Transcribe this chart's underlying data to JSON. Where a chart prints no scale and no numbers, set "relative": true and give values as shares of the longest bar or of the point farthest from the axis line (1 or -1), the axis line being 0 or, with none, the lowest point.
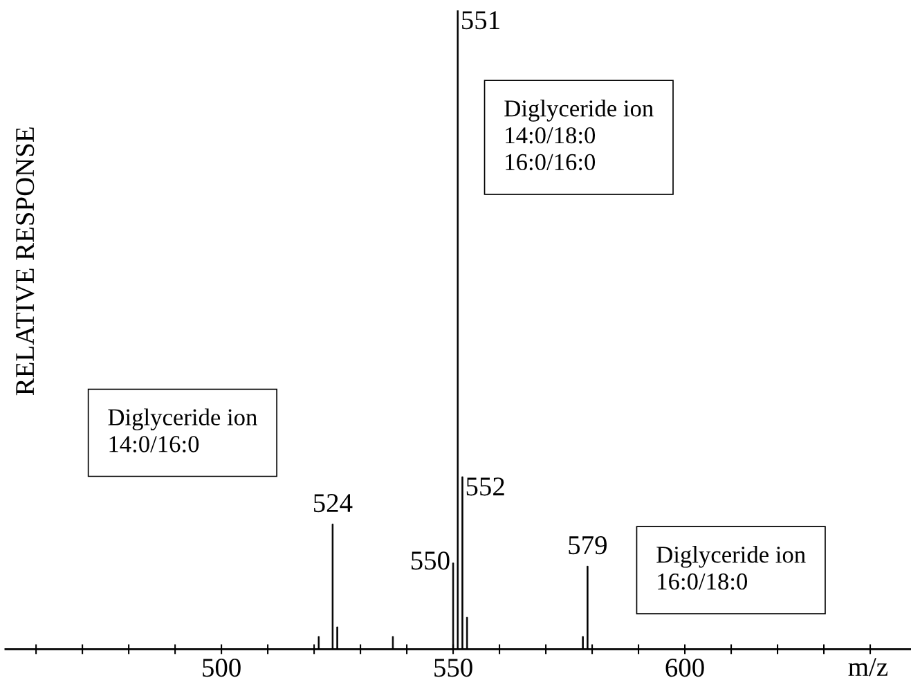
{
  "chart_data": {
    "type": "bar",
    "relative": true,
    "xlabel": "m/z",
    "ylabel": "RELATIVE RESPONSE",
    "x": [
      521,
      524,
      525,
      537,
      550,
      551,
      552,
      553,
      578,
      579
    ],
    "values": [
      0.02,
      0.196,
      0.035,
      0.02,
      0.135,
      1.0,
      0.27,
      0.05,
      0.02,
      0.13
    ],
    "color": "#000000",
    "xlim": [
      453.4,
      648.8
    ],
    "xticks": [
      {
        "value": 460,
        "label": null
      },
      {
        "value": 470,
        "label": null
      },
      {
        "value": 480,
        "label": null
      },
      {
        "value": 490,
        "label": null
      },
      500,
      {
        "value": 510,
        "label": null
      },
      {
        "value": 520,
        "label": null
      },
      {
        "value": 530,
        "label": null
      },
      {
        "value": 540,
        "label": null
      },
      550,
      {
        "value": 560,
        "label": null
      },
      {
        "value": 570,
        "label": null
      },
      {
        "value": 580,
        "label": null
      },
      {
        "value": 590,
        "label": null
      },
      600,
      {
        "value": 610,
        "label": null
      },
      {
        "value": 620,
        "label": null
      },
      {
        "value": 630,
        "label": null
      },
      {
        "value": 640,
        "label": null
      }
    ],
    "annotations": [
      "Diglyceride ion\n14:0/18:0\n16:0/16:0",
      "Diglyceride ion\n14:0/16:0",
      "Diglyceride ion\n16:0/18:0",
      {
        "text": "524",
        "x": 524,
        "y": 0.196
      },
      {
        "text": "550",
        "x": 550,
        "y": 0.135
      },
      {
        "text": "551",
        "x": 551,
        "y": 1.0
      },
      {
        "text": "552",
        "x": 552,
        "y": 0.27
      },
      {
        "text": "579",
        "x": 579,
        "y": 0.13
      }
    ],
    "grid": false,
    "legend": false
  }
}
